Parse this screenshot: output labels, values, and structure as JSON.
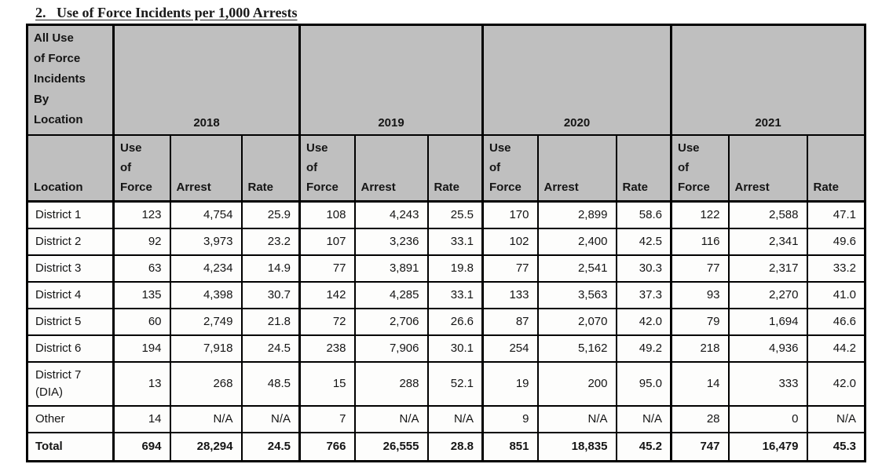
{
  "title": {
    "full": "2.   Use of Force Incidents per 1,000 Arrests"
  },
  "colors": {
    "header_bg": "#bfbfbf",
    "border": "#000000",
    "cell_bg": "#fdfdfc"
  },
  "table": {
    "corner_label": "All Use\nof Force\nIncidents\nBy\nLocation",
    "years": [
      "2018",
      "2019",
      "2020",
      "2021"
    ],
    "col_headers": {
      "location": "Location",
      "use_of_force": "Use\nof\nForce",
      "arrest": "Arrest",
      "rate": "Rate"
    },
    "rows": [
      {
        "location": "District 1",
        "values": [
          "123",
          "4,754",
          "25.9",
          "108",
          "4,243",
          "25.5",
          "170",
          "2,899",
          "58.6",
          "122",
          "2,588",
          "47.1"
        ]
      },
      {
        "location": "District 2",
        "values": [
          "92",
          "3,973",
          "23.2",
          "107",
          "3,236",
          "33.1",
          "102",
          "2,400",
          "42.5",
          "116",
          "2,341",
          "49.6"
        ]
      },
      {
        "location": "District 3",
        "values": [
          "63",
          "4,234",
          "14.9",
          "77",
          "3,891",
          "19.8",
          "77",
          "2,541",
          "30.3",
          "77",
          "2,317",
          "33.2"
        ]
      },
      {
        "location": "District 4",
        "values": [
          "135",
          "4,398",
          "30.7",
          "142",
          "4,285",
          "33.1",
          "133",
          "3,563",
          "37.3",
          "93",
          "2,270",
          "41.0"
        ]
      },
      {
        "location": "District 5",
        "values": [
          "60",
          "2,749",
          "21.8",
          "72",
          "2,706",
          "26.6",
          "87",
          "2,070",
          "42.0",
          "79",
          "1,694",
          "46.6"
        ]
      },
      {
        "location": "District 6",
        "values": [
          "194",
          "7,918",
          "24.5",
          "238",
          "7,906",
          "30.1",
          "254",
          "5,162",
          "49.2",
          "218",
          "4,936",
          "44.2"
        ]
      },
      {
        "location": "District 7 (DIA)",
        "tall": true,
        "values": [
          "13",
          "268",
          "48.5",
          "15",
          "288",
          "52.1",
          "19",
          "200",
          "95.0",
          "14",
          "333",
          "42.0"
        ]
      },
      {
        "location": "Other",
        "values": [
          "14",
          "N/A",
          "N/A",
          "7",
          "N/A",
          "N/A",
          "9",
          "N/A",
          "N/A",
          "28",
          "0",
          "N/A"
        ]
      }
    ],
    "total": {
      "location": "Total",
      "values": [
        "694",
        "28,294",
        "24.5",
        "766",
        "26,555",
        "28.8",
        "851",
        "18,835",
        "45.2",
        "747",
        "16,479",
        "45.3"
      ]
    }
  },
  "chart_data": {
    "type": "table",
    "title": "Use of Force Incidents per 1,000 Arrests",
    "categories": [
      "District 1",
      "District 2",
      "District 3",
      "District 4",
      "District 5",
      "District 6",
      "District 7 (DIA)",
      "Other",
      "Total"
    ],
    "series": [
      {
        "name": "2018 Use of Force",
        "values": [
          123,
          92,
          63,
          135,
          60,
          194,
          13,
          14,
          694
        ]
      },
      {
        "name": "2018 Arrest",
        "values": [
          4754,
          3973,
          4234,
          4398,
          2749,
          7918,
          268,
          null,
          28294
        ]
      },
      {
        "name": "2018 Rate",
        "values": [
          25.9,
          23.2,
          14.9,
          30.7,
          21.8,
          24.5,
          48.5,
          null,
          24.5
        ]
      },
      {
        "name": "2019 Use of Force",
        "values": [
          108,
          107,
          77,
          142,
          72,
          238,
          15,
          7,
          766
        ]
      },
      {
        "name": "2019 Arrest",
        "values": [
          4243,
          3236,
          3891,
          4285,
          2706,
          7906,
          288,
          null,
          26555
        ]
      },
      {
        "name": "2019 Rate",
        "values": [
          25.5,
          33.1,
          19.8,
          33.1,
          26.6,
          30.1,
          52.1,
          null,
          28.8
        ]
      },
      {
        "name": "2020 Use of Force",
        "values": [
          170,
          102,
          77,
          133,
          87,
          254,
          19,
          9,
          851
        ]
      },
      {
        "name": "2020 Arrest",
        "values": [
          2899,
          2400,
          2541,
          3563,
          2070,
          5162,
          200,
          null,
          18835
        ]
      },
      {
        "name": "2020 Rate",
        "values": [
          58.6,
          42.5,
          30.3,
          37.3,
          42.0,
          49.2,
          95.0,
          null,
          45.2
        ]
      },
      {
        "name": "2021 Use of Force",
        "values": [
          122,
          116,
          77,
          93,
          79,
          218,
          14,
          28,
          747
        ]
      },
      {
        "name": "2021 Arrest",
        "values": [
          2588,
          2341,
          2317,
          2270,
          1694,
          4936,
          333,
          0,
          16479
        ]
      },
      {
        "name": "2021 Rate",
        "values": [
          47.1,
          49.6,
          33.2,
          41.0,
          46.6,
          44.2,
          42.0,
          null,
          45.3
        ]
      }
    ]
  }
}
